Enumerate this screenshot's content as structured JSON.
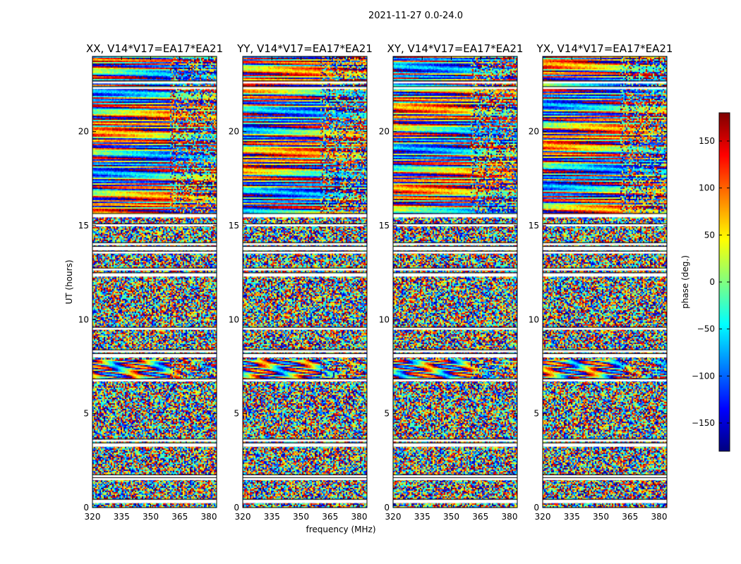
{
  "figure": {
    "suptitle": "2021-11-27 0.0-24.0",
    "xlabel": "frequency (MHz)",
    "ylabel": "UT (hours)",
    "colorbar_label": "phase (deg.)"
  },
  "chart_data": {
    "type": "heatmap",
    "xlim": [
      320,
      384
    ],
    "ylim": [
      0,
      24
    ],
    "x_ticks": [
      320,
      335,
      350,
      365,
      380
    ],
    "y_ticks": [
      0,
      5,
      10,
      15,
      20
    ],
    "colorbar": {
      "range": [
        -180,
        180
      ],
      "ticks": [
        -150,
        -100,
        -50,
        0,
        50,
        100,
        150
      ],
      "tick_labels": [
        "−150",
        "−100",
        "−50",
        "0",
        "50",
        "100",
        "150"
      ],
      "colormap": "jet",
      "colors": [
        "#00007f",
        "#0000ff",
        "#0080ff",
        "#00ffff",
        "#80ff80",
        "#ffff00",
        "#ff8000",
        "#ff0000",
        "#7f0000"
      ]
    },
    "panels": [
      {
        "title": "XX, V14*V17=EA17*EA21"
      },
      {
        "title": "YY, V14*V17=EA17*EA21"
      },
      {
        "title": "XY, V14*V17=EA17*EA21"
      },
      {
        "title": "YX, V14*V17=EA17*EA21"
      }
    ],
    "gaps_hours": [
      0.35,
      1.5,
      1.65,
      3.35,
      3.55,
      6.75,
      8.1,
      8.3,
      9.5,
      12.4,
      12.65,
      13.55,
      13.8,
      14.0,
      15.0,
      15.55,
      22.3,
      22.6
    ],
    "coherent_bands_hours": [
      [
        6.8,
        7.9
      ],
      [
        15.6,
        24.0
      ]
    ]
  }
}
